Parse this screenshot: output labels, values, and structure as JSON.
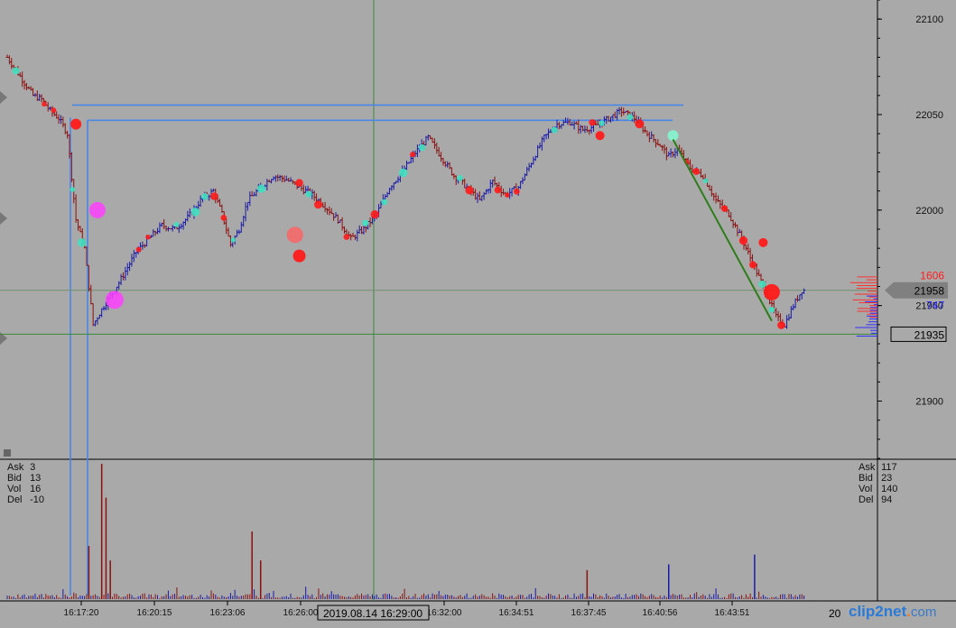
{
  "chart_data": {
    "type": "candlestick",
    "title": "",
    "price_axis": {
      "range": [
        21870,
        22110
      ],
      "ticks": [
        "22100",
        "22050",
        "22000",
        "21950",
        "21900"
      ],
      "markers": [
        {
          "label": "1606",
          "color": "#ff2020"
        },
        {
          "label": "21958",
          "color": "#000000",
          "style": "filled-gray"
        },
        {
          "label": "747",
          "color": "#2020ff"
        },
        {
          "label": "21935",
          "color": "#000000",
          "style": "boxed"
        }
      ],
      "current_price": 21958,
      "crosshair_price": 21935
    },
    "time_axis": {
      "ticks": [
        "16:17:20",
        "16:20:15",
        "16:23:06",
        "16:26:00",
        "16:32:00",
        "16:34:51",
        "16:37:45",
        "16:40:56",
        "16:43:51"
      ],
      "cursor_label": "2019.08.14 16:29:00",
      "right_edge_label": "20"
    },
    "price_path": [
      [
        0,
        22080
      ],
      [
        3,
        22070
      ],
      [
        6,
        22060
      ],
      [
        8,
        22058
      ],
      [
        10,
        22052
      ],
      [
        12,
        22048
      ],
      [
        14,
        22040
      ],
      [
        16,
        21995
      ],
      [
        18,
        21980
      ],
      [
        20,
        21940
      ],
      [
        22,
        21948
      ],
      [
        24,
        21955
      ],
      [
        26,
        21962
      ],
      [
        28,
        21970
      ],
      [
        30,
        21978
      ],
      [
        33,
        21985
      ],
      [
        36,
        21992
      ],
      [
        39,
        21990
      ],
      [
        42,
        21996
      ],
      [
        45,
        22005
      ],
      [
        48,
        22010
      ],
      [
        50,
        21998
      ],
      [
        52,
        21982
      ],
      [
        54,
        21990
      ],
      [
        56,
        22005
      ],
      [
        59,
        22012
      ],
      [
        62,
        22018
      ],
      [
        65,
        22016
      ],
      [
        68,
        22012
      ],
      [
        71,
        22008
      ],
      [
        74,
        22002
      ],
      [
        77,
        21995
      ],
      [
        80,
        21985
      ],
      [
        83,
        21990
      ],
      [
        86,
        21998
      ],
      [
        89,
        22012
      ],
      [
        92,
        22020
      ],
      [
        95,
        22030
      ],
      [
        98,
        22038
      ],
      [
        101,
        22028
      ],
      [
        104,
        22018
      ],
      [
        107,
        22012
      ],
      [
        110,
        22005
      ],
      [
        113,
        22015
      ],
      [
        116,
        22008
      ],
      [
        119,
        22012
      ],
      [
        122,
        22025
      ],
      [
        125,
        22038
      ],
      [
        128,
        22045
      ],
      [
        131,
        22046
      ],
      [
        134,
        22042
      ],
      [
        137,
        22044
      ],
      [
        140,
        22048
      ],
      [
        143,
        22052
      ],
      [
        146,
        22048
      ],
      [
        149,
        22040
      ],
      [
        152,
        22034
      ],
      [
        154,
        22028
      ],
      [
        156,
        22032
      ],
      [
        159,
        22022
      ],
      [
        162,
        22018
      ],
      [
        165,
        22005
      ],
      [
        168,
        21998
      ],
      [
        171,
        21985
      ],
      [
        174,
        21970
      ],
      [
        177,
        21955
      ],
      [
        179,
        21944
      ],
      [
        181,
        21940
      ],
      [
        183,
        21950
      ],
      [
        185,
        21958
      ]
    ],
    "levels": [
      {
        "name": "upper-level",
        "price": 22055
      },
      {
        "name": "lower-level",
        "price": 22047
      },
      {
        "name": "current-level",
        "price": 21958
      },
      {
        "name": "crosshair-level",
        "price": 21935
      }
    ],
    "trendline": {
      "from": [
        155,
        22037
      ],
      "to": [
        178,
        21942
      ]
    },
    "volume_panel": {
      "left_stats": [
        {
          "k": "Ask",
          "v": "3"
        },
        {
          "k": "Bid",
          "v": "13"
        },
        {
          "k": "Vol",
          "v": "16"
        },
        {
          "k": "Del",
          "v": "-10"
        }
      ],
      "right_stats": [
        {
          "k": "Ask",
          "v": "117"
        },
        {
          "k": "Bid",
          "v": "23"
        },
        {
          "k": "Vol",
          "v": "140"
        },
        {
          "k": "Del",
          "v": "94"
        }
      ],
      "spikes": [
        {
          "t": 22,
          "v": 140
        },
        {
          "t": 23,
          "v": 105
        },
        {
          "t": 24,
          "v": 40
        },
        {
          "t": 19,
          "v": 55
        },
        {
          "t": 57,
          "v": 70
        },
        {
          "t": 59,
          "v": 40
        },
        {
          "t": 135,
          "v": 30
        },
        {
          "t": 154,
          "v": 36
        },
        {
          "t": 174,
          "v": 46
        }
      ]
    },
    "colors": {
      "background": "#a9a9a9",
      "up_bar": "#1a1aa8",
      "down_bar": "#8b1010",
      "level_line": "#4a86e8",
      "trendline": "#2e7d1a",
      "bubble_sell": "#ff1a1a",
      "bubble_buy": "#40e0c0",
      "bubble_big": "#ff40ff"
    }
  },
  "watermark": {
    "brand": "clip2net",
    "dot": ".",
    "ext": "com"
  }
}
